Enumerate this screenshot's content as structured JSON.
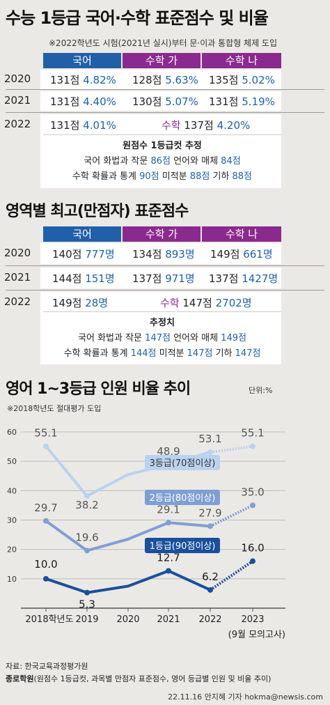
{
  "section1": {
    "title": "수능 1등급 국어·수학 표준점수 및 비율",
    "note": "※2022학년도 시험(2021년 실시)부터 문·이과 통합형 체제 도입",
    "headers": [
      "국어",
      "수학 가",
      "수학 나"
    ],
    "rows": [
      {
        "year": "2020",
        "c1": "131점",
        "c1b": "4.82%",
        "c2": "128점",
        "c2b": "5.63%",
        "c3": "135점",
        "c3b": "5.02%"
      },
      {
        "year": "2021",
        "c1": "131점",
        "c1b": "4.40%",
        "c2": "130점",
        "c2b": "5.07%",
        "c3": "131점",
        "c3b": "5.19%"
      }
    ],
    "row2022": {
      "year": "2022",
      "c1": "131점",
      "c1b": "4.01%",
      "math_label": "수학",
      "c2": "137점",
      "c2b": "4.20%"
    },
    "est_title": "원점수 1등급컷 추정",
    "est_line1": {
      "pre": "국어 화법과 작문",
      "v1": "86점",
      "mid": "언어와 매체",
      "v2": "84점"
    },
    "est_line2": {
      "pre": "수학 확률과 통계",
      "v1": "90점",
      "mid": "미적분",
      "v2": "88점",
      "mid2": "기하",
      "v3": "88점"
    }
  },
  "section2": {
    "title": "영역별 최고(만점자) 표준점수",
    "headers": [
      "국어",
      "수학 가",
      "수학 나"
    ],
    "rows": [
      {
        "year": "2020",
        "c1": "140점",
        "c1b": "777명",
        "c2": "134점",
        "c2b": "893명",
        "c3": "149점",
        "c3b": "661명"
      },
      {
        "year": "2021",
        "c1": "144점",
        "c1b": "151명",
        "c2": "137점",
        "c2b": "971명",
        "c3": "137점",
        "c3b": "1427명"
      }
    ],
    "row2022": {
      "year": "2022",
      "c1": "149점",
      "c1b": "28명",
      "math_label": "수학",
      "c2": "147점",
      "c2b": "2702명"
    },
    "est_title": "추정치",
    "est_line1": {
      "pre": "국어 화법과 작문",
      "v1": "147점",
      "mid": "언어와 매체",
      "v2": "149점"
    },
    "est_line2": {
      "pre": "수학 확률과 통계",
      "v1": "144점",
      "mid": "미적분",
      "v2": "147점",
      "mid2": "기하",
      "v3": "147점"
    }
  },
  "section3": {
    "title": "영어 1~3등급 인원 비율 추이",
    "unit": "단위:%",
    "note": "※2018학년도 절대평가 도입",
    "exam_note": "(9월 모의고사)"
  },
  "colors": {
    "korean": "#2160a8",
    "math_ga": "#8b2a8e",
    "math_na": "#8b2a8e",
    "grade3": "#b9d2ef",
    "grade2": "#7f9fd4",
    "grade1": "#1a4f9c"
  },
  "chart_data": {
    "type": "line",
    "title": "영어 1~3등급 인원 비율 추이",
    "xlabel": "",
    "ylabel": "",
    "unit": "%",
    "categories": [
      "2018학년도",
      "2019",
      "2020",
      "2021",
      "2022",
      "2023"
    ],
    "ylim": [
      0,
      60
    ],
    "yticks": [
      "10",
      "20",
      "30",
      "40",
      "50",
      "60"
    ],
    "grid": true,
    "series": [
      {
        "name": "3등급(70점이상)",
        "values": [
          55.1,
          38.2,
          45.5,
          48.9,
          53.1,
          55.1
        ],
        "labels": [
          "55.1",
          "38.2",
          "",
          "48.9",
          "53.1",
          "55.1"
        ]
      },
      {
        "name": "2등급(80점이상)",
        "values": [
          29.7,
          19.6,
          23.5,
          29.1,
          27.9,
          35.0
        ],
        "labels": [
          "29.7",
          "19.6",
          "",
          "29.1",
          "27.9",
          "35.0"
        ]
      },
      {
        "name": "1등급(90점이상)",
        "values": [
          10.0,
          5.3,
          7.5,
          12.7,
          6.2,
          16.0
        ],
        "labels": [
          "10.0",
          "5.3",
          "",
          "12.7",
          "6.2",
          "16.0"
        ]
      }
    ]
  },
  "source": {
    "line1_label": "자료:",
    "line1": "한국교육과정평가원",
    "line2_label": "종로학원",
    "line2": "(원점수 1등급컷, 과목별 만점자 표준점수, 영어 등급별 인원 및 비율 추이)"
  },
  "byline": "22.11.16 안지혜 기자 hokma@newsis.com"
}
